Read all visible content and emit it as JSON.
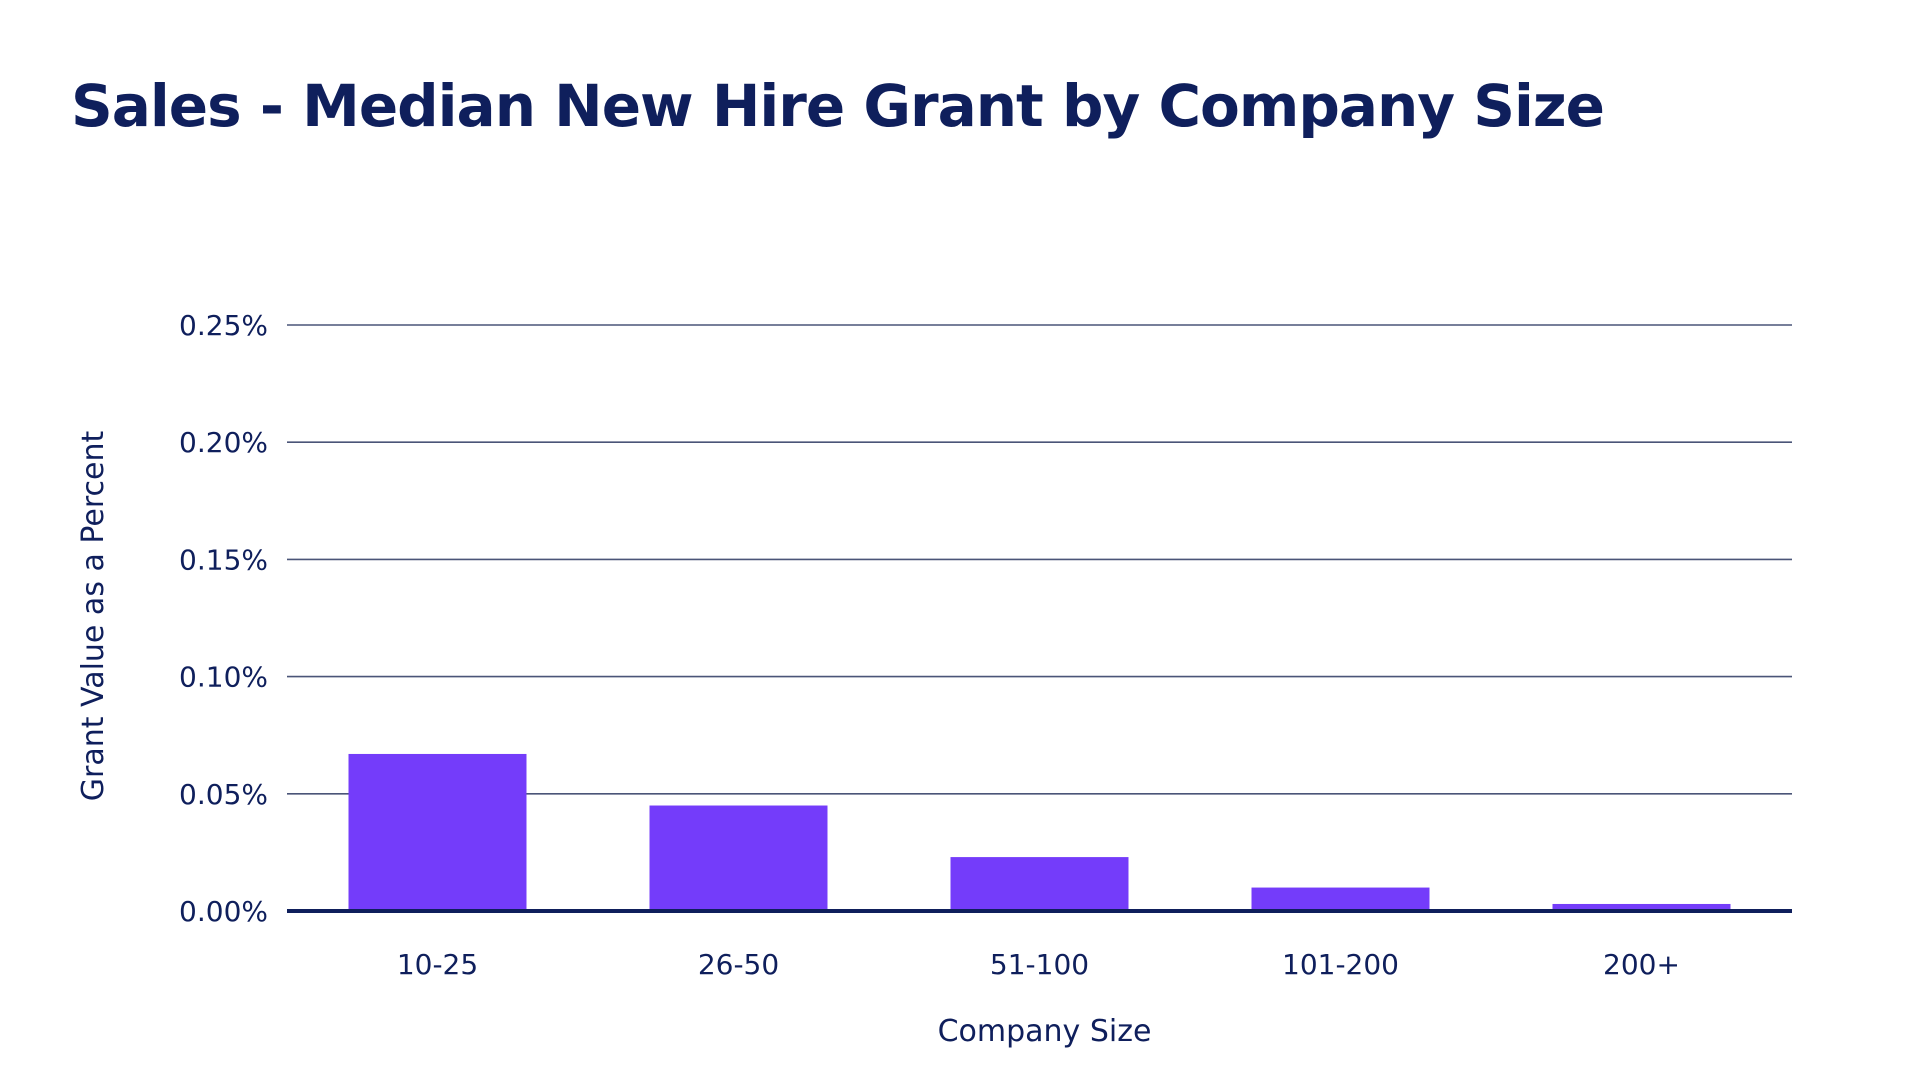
{
  "chart_data": {
    "type": "bar",
    "title": "Sales - Median New Hire Grant by Company Size",
    "xlabel": "Company Size",
    "ylabel": "Grant Value as a Percent",
    "categories": [
      "10-25",
      "26-50",
      "51-100",
      "101-200",
      "200+"
    ],
    "values": [
      0.067,
      0.045,
      0.023,
      0.01,
      0.003
    ],
    "ylim": [
      0,
      0.25
    ],
    "yticks": [
      0,
      0.05,
      0.1,
      0.15,
      0.2,
      0.25
    ],
    "ytick_labels": [
      "0.00%",
      "0.05%",
      "0.10%",
      "0.15%",
      "0.20%",
      "0.25%"
    ],
    "grid": true,
    "legend": "none",
    "bar_color": "#743cfa",
    "grid_color": "#4a5578",
    "axis_color": "#0f1f5c",
    "text_color": "#0f1f5c"
  }
}
